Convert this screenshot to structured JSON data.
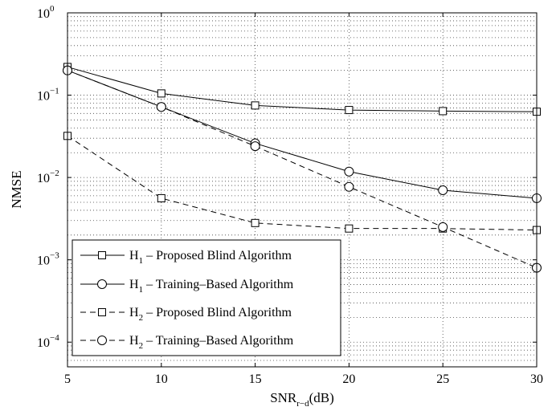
{
  "chart_data": {
    "type": "line",
    "title": "",
    "xlabel": "SNR",
    "xlabel_sub": "r−d",
    "xlabel_suffix": "(dB)",
    "ylabel": "NMSE",
    "x": [
      5,
      10,
      15,
      20,
      25,
      30
    ],
    "xlim": [
      5,
      30
    ],
    "ylim": [
      5e-05,
      1
    ],
    "yscale": "log",
    "grid": true,
    "legend_position": "bottom-left",
    "xticks": [
      "5",
      "10",
      "15",
      "20",
      "25",
      "30"
    ],
    "yticks": [
      {
        "base": "10",
        "exp": "0"
      },
      {
        "base": "10",
        "exp": "−1"
      },
      {
        "base": "10",
        "exp": "−2"
      },
      {
        "base": "10",
        "exp": "−3"
      },
      {
        "base": "10",
        "exp": "−4"
      }
    ],
    "series": [
      {
        "name": "H1 – Proposed Blind Algorithm",
        "label_main": "H",
        "label_sub": "1",
        "label_rest": " – Proposed Blind Algorithm",
        "style": "solid",
        "marker": "square",
        "values": [
          0.22,
          0.105,
          0.075,
          0.066,
          0.064,
          0.063
        ]
      },
      {
        "name": "H1 – Training–Based Algorithm",
        "label_main": "H",
        "label_sub": "1",
        "label_rest": " – Training–Based Algorithm",
        "style": "solid",
        "marker": "circle",
        "values": [
          0.2,
          0.072,
          0.026,
          0.0118,
          0.007,
          0.0056
        ]
      },
      {
        "name": "H2 – Proposed Blind Algorithm",
        "label_main": "H",
        "label_sub": "2",
        "label_rest": " – Proposed Blind Algorithm",
        "style": "dashed",
        "marker": "square",
        "values": [
          0.032,
          0.0056,
          0.0028,
          0.0024,
          0.0024,
          0.0023
        ]
      },
      {
        "name": "H2 – Training–Based Algorithm",
        "label_main": "H",
        "label_sub": "2",
        "label_rest": " – Training–Based Algorithm",
        "style": "dashed",
        "marker": "circle",
        "values": [
          0.2,
          0.072,
          0.024,
          0.0077,
          0.0025,
          0.0008
        ]
      }
    ]
  }
}
